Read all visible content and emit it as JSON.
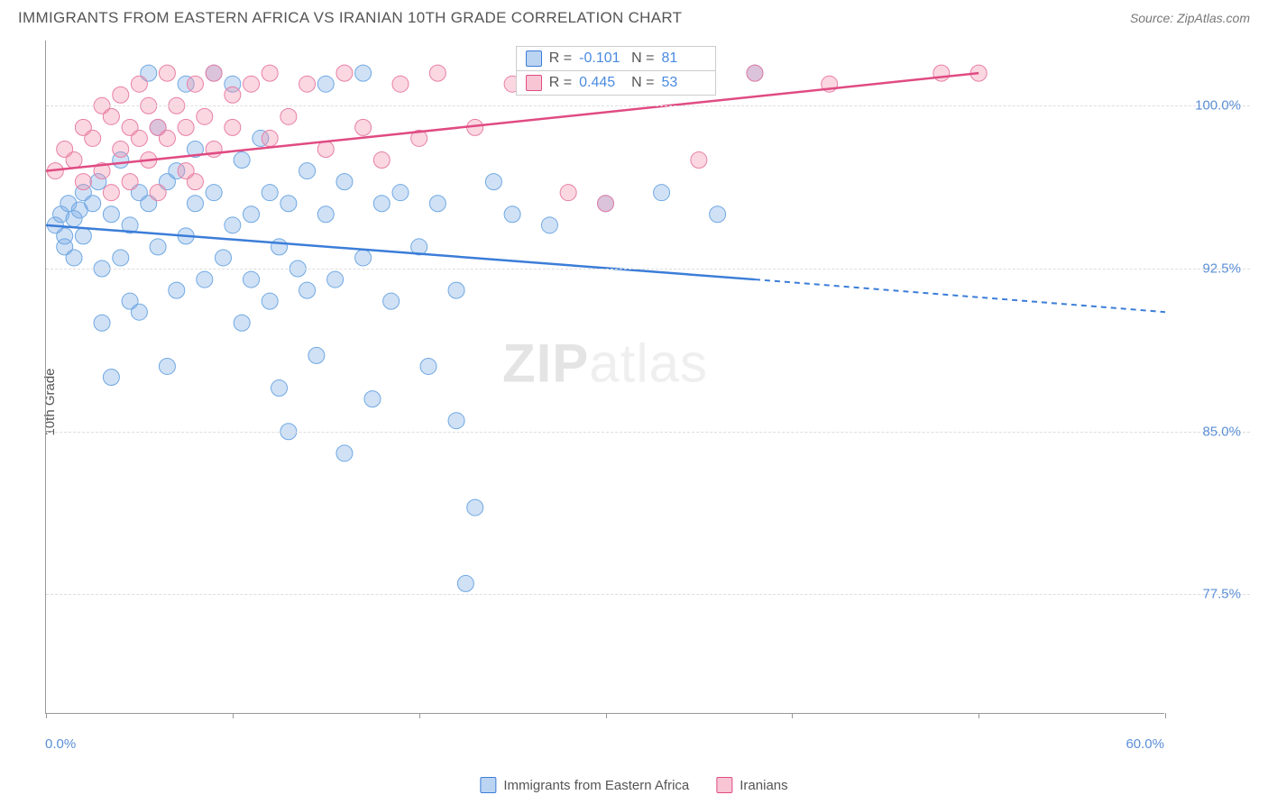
{
  "header": {
    "title": "IMMIGRANTS FROM EASTERN AFRICA VS IRANIAN 10TH GRADE CORRELATION CHART",
    "source": "Source: ZipAtlas.com"
  },
  "chart": {
    "type": "scatter",
    "ylabel": "10th Grade",
    "xlim": [
      0,
      60
    ],
    "ylim": [
      72,
      103
    ],
    "ytick_values": [
      77.5,
      85.0,
      92.5,
      100.0
    ],
    "ytick_labels": [
      "77.5%",
      "85.0%",
      "92.5%",
      "100.0%"
    ],
    "xtick_values": [
      0,
      10,
      20,
      30,
      40,
      50,
      60
    ],
    "x_axis_labels": {
      "left": "0.0%",
      "right": "60.0%"
    },
    "grid_color": "#dddddd",
    "axis_color": "#999999",
    "background_color": "#ffffff",
    "watermark": "ZIPatlas",
    "series": [
      {
        "name": "Immigrants from Eastern Africa",
        "color_fill": "rgba(120,170,230,0.35)",
        "color_stroke": "#6fa8e2",
        "line_color": "#3b7dd8",
        "marker_radius": 9,
        "R": "-0.101",
        "N": "81",
        "trend": {
          "x1": 0,
          "y1": 94.5,
          "x2": 38,
          "y2": 92.0,
          "dash_to_x": 60,
          "dash_to_y": 90.5
        },
        "points": [
          [
            0.5,
            94.5
          ],
          [
            0.8,
            95.0
          ],
          [
            1.0,
            94.0
          ],
          [
            1.2,
            95.5
          ],
          [
            1.0,
            93.5
          ],
          [
            1.5,
            94.8
          ],
          [
            1.8,
            95.2
          ],
          [
            1.5,
            93.0
          ],
          [
            2.0,
            96.0
          ],
          [
            2.0,
            94.0
          ],
          [
            2.5,
            95.5
          ],
          [
            2.8,
            96.5
          ],
          [
            3.0,
            92.5
          ],
          [
            3.0,
            90.0
          ],
          [
            3.5,
            95.0
          ],
          [
            3.5,
            87.5
          ],
          [
            4.0,
            97.5
          ],
          [
            4.0,
            93.0
          ],
          [
            4.5,
            94.5
          ],
          [
            4.5,
            91.0
          ],
          [
            5.0,
            96.0
          ],
          [
            5.0,
            90.5
          ],
          [
            5.5,
            101.5
          ],
          [
            5.5,
            95.5
          ],
          [
            6.0,
            99.0
          ],
          [
            6.0,
            93.5
          ],
          [
            6.5,
            96.5
          ],
          [
            6.5,
            88.0
          ],
          [
            7.0,
            97.0
          ],
          [
            7.0,
            91.5
          ],
          [
            7.5,
            101.0
          ],
          [
            7.5,
            94.0
          ],
          [
            8.0,
            95.5
          ],
          [
            8.0,
            98.0
          ],
          [
            8.5,
            92.0
          ],
          [
            9.0,
            101.5
          ],
          [
            9.0,
            96.0
          ],
          [
            9.5,
            93.0
          ],
          [
            10.0,
            101.0
          ],
          [
            10.0,
            94.5
          ],
          [
            10.5,
            97.5
          ],
          [
            10.5,
            90.0
          ],
          [
            11.0,
            95.0
          ],
          [
            11.0,
            92.0
          ],
          [
            11.5,
            98.5
          ],
          [
            12.0,
            96.0
          ],
          [
            12.0,
            91.0
          ],
          [
            12.5,
            93.5
          ],
          [
            12.5,
            87.0
          ],
          [
            13.0,
            95.5
          ],
          [
            13.0,
            85.0
          ],
          [
            13.5,
            92.5
          ],
          [
            14.0,
            97.0
          ],
          [
            14.0,
            91.5
          ],
          [
            14.5,
            88.5
          ],
          [
            15.0,
            101.0
          ],
          [
            15.0,
            95.0
          ],
          [
            15.5,
            92.0
          ],
          [
            16.0,
            96.5
          ],
          [
            16.0,
            84.0
          ],
          [
            17.0,
            101.5
          ],
          [
            17.0,
            93.0
          ],
          [
            17.5,
            86.5
          ],
          [
            18.0,
            95.5
          ],
          [
            18.5,
            91.0
          ],
          [
            19.0,
            96.0
          ],
          [
            20.0,
            93.5
          ],
          [
            20.5,
            88.0
          ],
          [
            21.0,
            95.5
          ],
          [
            22.0,
            91.5
          ],
          [
            22.0,
            85.5
          ],
          [
            22.5,
            78.0
          ],
          [
            23.0,
            81.5
          ],
          [
            24.0,
            96.5
          ],
          [
            25.0,
            95.0
          ],
          [
            27.0,
            94.5
          ],
          [
            30.0,
            95.5
          ],
          [
            33.0,
            96.0
          ],
          [
            35.0,
            101.0
          ],
          [
            36.0,
            95.0
          ],
          [
            38.0,
            101.5
          ]
        ]
      },
      {
        "name": "Iranians",
        "color_fill": "rgba(240,140,170,0.35)",
        "color_stroke": "#e87fa5",
        "line_color": "#e04b82",
        "marker_radius": 9,
        "R": "0.445",
        "N": "53",
        "trend": {
          "x1": 0,
          "y1": 97.0,
          "x2": 50,
          "y2": 101.5,
          "dash_to_x": null,
          "dash_to_y": null
        },
        "points": [
          [
            0.5,
            97.0
          ],
          [
            1.0,
            98.0
          ],
          [
            1.5,
            97.5
          ],
          [
            2.0,
            99.0
          ],
          [
            2.0,
            96.5
          ],
          [
            2.5,
            98.5
          ],
          [
            3.0,
            100.0
          ],
          [
            3.0,
            97.0
          ],
          [
            3.5,
            99.5
          ],
          [
            3.5,
            96.0
          ],
          [
            4.0,
            98.0
          ],
          [
            4.0,
            100.5
          ],
          [
            4.5,
            99.0
          ],
          [
            4.5,
            96.5
          ],
          [
            5.0,
            101.0
          ],
          [
            5.0,
            98.5
          ],
          [
            5.5,
            97.5
          ],
          [
            5.5,
            100.0
          ],
          [
            6.0,
            99.0
          ],
          [
            6.0,
            96.0
          ],
          [
            6.5,
            101.5
          ],
          [
            6.5,
            98.5
          ],
          [
            7.0,
            100.0
          ],
          [
            7.5,
            99.0
          ],
          [
            7.5,
            97.0
          ],
          [
            8.0,
            101.0
          ],
          [
            8.0,
            96.5
          ],
          [
            8.5,
            99.5
          ],
          [
            9.0,
            101.5
          ],
          [
            9.0,
            98.0
          ],
          [
            10.0,
            100.5
          ],
          [
            10.0,
            99.0
          ],
          [
            11.0,
            101.0
          ],
          [
            12.0,
            98.5
          ],
          [
            12.0,
            101.5
          ],
          [
            13.0,
            99.5
          ],
          [
            14.0,
            101.0
          ],
          [
            15.0,
            98.0
          ],
          [
            16.0,
            101.5
          ],
          [
            17.0,
            99.0
          ],
          [
            18.0,
            97.5
          ],
          [
            19.0,
            101.0
          ],
          [
            20.0,
            98.5
          ],
          [
            21.0,
            101.5
          ],
          [
            23.0,
            99.0
          ],
          [
            25.0,
            101.0
          ],
          [
            28.0,
            96.0
          ],
          [
            30.0,
            95.5
          ],
          [
            35.0,
            97.5
          ],
          [
            38.0,
            101.5
          ],
          [
            42.0,
            101.0
          ],
          [
            48.0,
            101.5
          ],
          [
            50.0,
            101.5
          ]
        ]
      }
    ]
  },
  "legend": {
    "series1_label": "Immigrants from Eastern Africa",
    "series2_label": "Iranians"
  }
}
